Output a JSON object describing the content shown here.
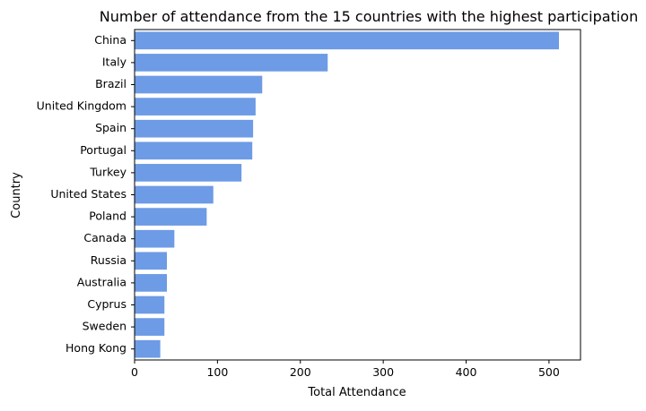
{
  "chart_data": {
    "type": "bar",
    "orientation": "horizontal",
    "title": "Number of attendance from the 15 countries with the highest participation",
    "xlabel": "Total Attendance",
    "ylabel": "Country",
    "categories": [
      "China",
      "Italy",
      "Brazil",
      "United Kingdom",
      "Spain",
      "Portugal",
      "Turkey",
      "United States",
      "Poland",
      "Canada",
      "Russia",
      "Australia",
      "Cyprus",
      "Sweden",
      "Hong Kong"
    ],
    "values": [
      512,
      233,
      154,
      146,
      143,
      142,
      129,
      95,
      87,
      48,
      39,
      39,
      36,
      36,
      31
    ],
    "xlim": [
      0,
      538
    ],
    "xticks": [
      0,
      100,
      200,
      300,
      400,
      500
    ],
    "grid": false,
    "bar_color": "#6d9be5"
  }
}
